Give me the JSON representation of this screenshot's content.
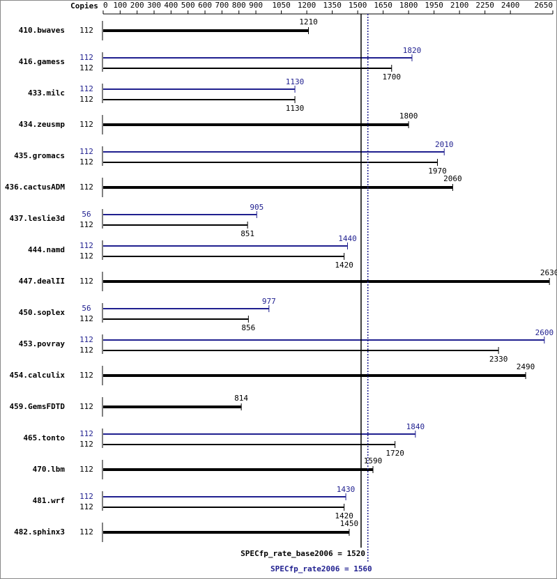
{
  "chart_data": {
    "type": "bar",
    "axis_header": "Copies",
    "xlim": [
      0,
      2650
    ],
    "xticks": [
      0,
      100,
      200,
      300,
      400,
      500,
      600,
      700,
      800,
      900,
      1050,
      1200,
      1350,
      1500,
      1650,
      1800,
      1950,
      2100,
      2250,
      2400,
      2650
    ],
    "categories": [
      "410.bwaves",
      "416.gamess",
      "433.milc",
      "434.zeusmp",
      "435.gromacs",
      "436.cactusADM",
      "437.leslie3d",
      "444.namd",
      "447.dealII",
      "450.soplex",
      "453.povray",
      "454.calculix",
      "459.GemsFDTD",
      "465.tonto",
      "470.lbm",
      "481.wrf",
      "482.sphinx3"
    ],
    "series": [
      {
        "name": "SPECfp_rate_base2006",
        "color": "#000000",
        "mean": 1520,
        "mean_label": "SPECfp_rate_base2006 = 1520",
        "copies": [
          112,
          112,
          112,
          112,
          112,
          112,
          112,
          112,
          112,
          112,
          112,
          112,
          112,
          112,
          112,
          112,
          112
        ],
        "values": [
          1210,
          1700,
          1130,
          1800,
          1970,
          2060,
          851,
          1420,
          2630,
          856,
          2330,
          2490,
          814,
          1720,
          1590,
          1420,
          1450
        ]
      },
      {
        "name": "SPECfp_rate2006",
        "color": "#1f1f8f",
        "mean": 1560,
        "mean_label": "SPECfp_rate2006 = 1560",
        "copies": [
          null,
          112,
          112,
          null,
          112,
          null,
          56,
          112,
          null,
          56,
          112,
          null,
          null,
          112,
          null,
          112,
          null
        ],
        "values": [
          null,
          1820,
          1130,
          null,
          2010,
          null,
          905,
          1440,
          null,
          977,
          2600,
          null,
          null,
          1840,
          null,
          1430,
          null
        ]
      }
    ]
  }
}
